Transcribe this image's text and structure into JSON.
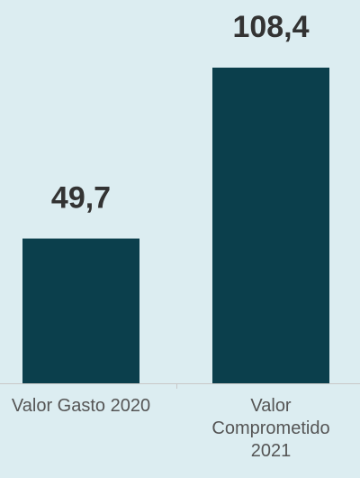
{
  "chart_data": {
    "type": "bar",
    "categories": [
      "Valor Gasto 2020",
      "Valor Comprometido 2021"
    ],
    "values": [
      49.7,
      108.4
    ],
    "value_labels": [
      "49,7",
      "108,4"
    ],
    "color": "#0b3f4c"
  }
}
